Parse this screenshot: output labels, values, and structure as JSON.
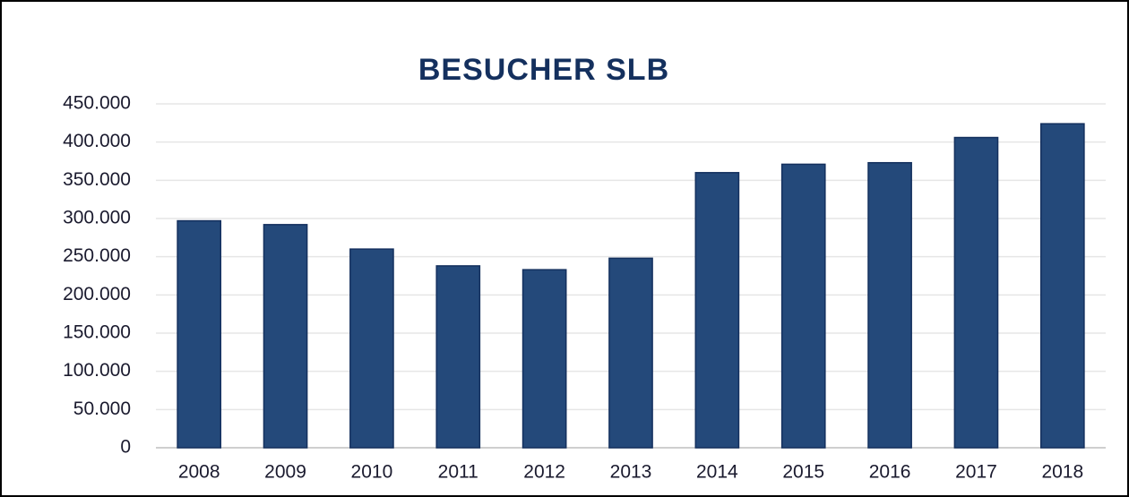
{
  "chart_data": {
    "type": "bar",
    "title": "BESUCHER SLB",
    "categories": [
      "2008",
      "2009",
      "2010",
      "2011",
      "2012",
      "2013",
      "2014",
      "2015",
      "2016",
      "2017",
      "2018"
    ],
    "values": [
      297000,
      292000,
      260000,
      238000,
      233000,
      248000,
      360000,
      371000,
      373000,
      406000,
      424000
    ],
    "color": "#24497a",
    "ylim": [
      0,
      450000
    ],
    "yticks": [
      0,
      {
        "value": 50000,
        "label": "50.000"
      },
      {
        "value": 100000,
        "label": "100.000"
      },
      {
        "value": 150000,
        "label": "150.000"
      },
      {
        "value": 200000,
        "label": "200.000"
      },
      {
        "value": 250000,
        "label": "250.000"
      },
      {
        "value": 300000,
        "label": "300.000"
      },
      {
        "value": 350000,
        "label": "350.000"
      },
      {
        "value": 400000,
        "label": "400.000"
      },
      {
        "value": 450000,
        "label": "450.000"
      }
    ],
    "grid": true
  }
}
